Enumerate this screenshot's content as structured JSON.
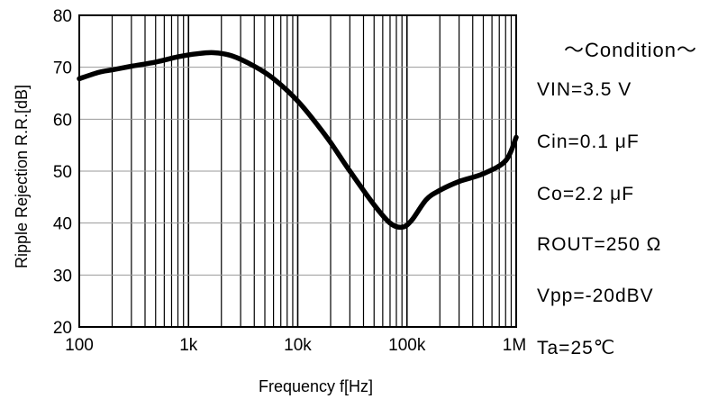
{
  "chart_data": {
    "type": "line",
    "title": "",
    "xlabel": "Frequency  f[Hz]",
    "ylabel": "Ripple Rejection   R.R.[dB]",
    "xscale": "log",
    "xlim": [
      100,
      1000000
    ],
    "ylim": [
      20,
      80
    ],
    "xticks": [
      100,
      1000,
      10000,
      100000,
      1000000
    ],
    "xtick_labels": [
      "100",
      "1k",
      "10k",
      "100k",
      "1M"
    ],
    "yticks": [
      20,
      30,
      40,
      50,
      60,
      70,
      80
    ],
    "ytick_labels": [
      "20",
      "30",
      "40",
      "50",
      "60",
      "70",
      "80"
    ],
    "grid": true,
    "series": [
      {
        "name": "",
        "x": [
          100,
          150,
          200,
          300,
          500,
          800,
          1200,
          1700,
          2500,
          4000,
          6000,
          10000,
          15000,
          20000,
          30000,
          50000,
          70000,
          90000,
          110000,
          150000,
          200000,
          300000,
          500000,
          800000,
          1000000
        ],
        "y": [
          67.8,
          69.0,
          69.5,
          70.2,
          71.0,
          72.0,
          72.6,
          72.8,
          72.2,
          70.2,
          67.8,
          63.5,
          59.0,
          55.5,
          50.0,
          43.5,
          40.0,
          39.2,
          40.5,
          44.5,
          46.3,
          48.0,
          49.5,
          52.0,
          56.5
        ]
      }
    ]
  },
  "conditions": {
    "title": "～Condition～",
    "lines": [
      "VIN=3.5 V",
      "Cin=0.1 μF",
      "Co=2.2 μF",
      "ROUT=250 Ω",
      "Vpp=-20dBV",
      "Ta=25℃"
    ]
  }
}
